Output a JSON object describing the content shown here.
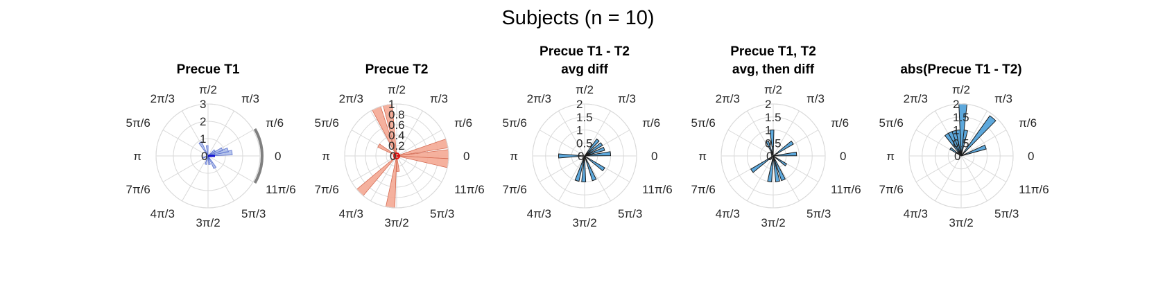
{
  "figure": {
    "title": "Subjects (n = 10)"
  },
  "colors": {
    "blue_fill": "#9fb3e6",
    "blue_edge": "#5a6fd0",
    "blue_line": "#1010d0",
    "salmon_fill": "#f4a893",
    "salmon_edge": "#d46a52",
    "red_line": "#e01010",
    "sky_fill": "#5da8dc",
    "sky_edge": "#1a1a1a",
    "gray_arc": "#808080",
    "grid": "#d9d9d9"
  },
  "chart_data": [
    {
      "type": "polar-histogram",
      "title_lines": [
        "Precue T1"
      ],
      "rmax": 3,
      "rticks": [
        "1",
        "2",
        "3"
      ],
      "rtick_values": [
        1,
        2,
        3
      ],
      "rzero_label": "0",
      "theta_labels": [
        "0",
        "π/6",
        "π/3",
        "π/2",
        "2π/3",
        "5π/6",
        "π",
        "7π/6",
        "4π/3",
        "3π/2",
        "5π/3",
        "11π/6"
      ],
      "bin_width_deg": 11,
      "bins": [
        {
          "theta_deg": 8,
          "r": 1.4
        },
        {
          "theta_deg": 17,
          "r": 1.2
        },
        {
          "theta_deg": 26,
          "r": 0.9
        },
        {
          "theta_deg": 40,
          "r": 0.5
        },
        {
          "theta_deg": 95,
          "r": 0.6
        },
        {
          "theta_deg": 120,
          "r": 0.9
        },
        {
          "theta_deg": 200,
          "r": 0.3
        },
        {
          "theta_deg": 255,
          "r": 0.5
        },
        {
          "theta_deg": 280,
          "r": 0.5
        },
        {
          "theta_deg": 300,
          "r": 0.8
        }
      ],
      "mean_vector": {
        "theta_deg": 0,
        "r": 0.4
      },
      "arc_deg": [
        -30,
        30
      ],
      "style": "blue"
    },
    {
      "type": "polar-histogram",
      "title_lines": [
        "Precue T2"
      ],
      "rmax": 1,
      "rticks": [
        "0.2",
        "0.4",
        "0.6",
        "0.8",
        "1"
      ],
      "rtick_values": [
        0.2,
        0.4,
        0.6,
        0.8,
        1.0
      ],
      "rzero_label": "0",
      "theta_labels": [
        "0",
        "π/6",
        "π/3",
        "π/2",
        "2π/3",
        "5π/6",
        "π",
        "7π/6",
        "4π/3",
        "3π/2",
        "5π/3",
        "11π/6"
      ],
      "bin_width_deg": 10,
      "bins": [
        {
          "theta_deg": 14,
          "r": 1.0
        },
        {
          "theta_deg": 2,
          "r": 1.0
        },
        {
          "theta_deg": -8,
          "r": 1.0
        },
        {
          "theta_deg": 100,
          "r": 1.0
        },
        {
          "theta_deg": 113,
          "r": 1.0
        },
        {
          "theta_deg": 150,
          "r": 0.4
        },
        {
          "theta_deg": 225,
          "r": 1.0
        },
        {
          "theta_deg": 263,
          "r": 1.0
        },
        {
          "theta_deg": 275,
          "r": 0.3
        }
      ],
      "mean_vector": {
        "theta_deg": 0,
        "r": 0.05
      },
      "style": "salmon"
    },
    {
      "type": "polar-histogram",
      "title_lines": [
        "Precue T1 - T2",
        "avg diff"
      ],
      "rmax": 2,
      "rticks": [
        "0.5",
        "1",
        "1.5",
        "2"
      ],
      "rtick_values": [
        0.5,
        1.0,
        1.5,
        2.0
      ],
      "rzero_label": "0",
      "theta_labels": [
        "0",
        "π/6",
        "π/3",
        "π/2",
        "2π/3",
        "5π/6",
        "π",
        "7π/6",
        "4π/3",
        "3π/2",
        "5π/3",
        "11π/6"
      ],
      "bin_width_deg": 9,
      "bins": [
        {
          "theta_deg": 5,
          "r": 1.0
        },
        {
          "theta_deg": 20,
          "r": 0.8
        },
        {
          "theta_deg": 35,
          "r": 0.8
        },
        {
          "theta_deg": 50,
          "r": 0.8
        },
        {
          "theta_deg": 180,
          "r": 1.0
        },
        {
          "theta_deg": 253,
          "r": 1.0
        },
        {
          "theta_deg": 268,
          "r": 1.0
        },
        {
          "theta_deg": 292,
          "r": 1.0
        },
        {
          "theta_deg": 325,
          "r": 0.9
        }
      ],
      "style": "sky"
    },
    {
      "type": "polar-histogram",
      "title_lines": [
        "Precue T1, T2",
        "avg, then diff"
      ],
      "rmax": 2,
      "rticks": [
        "0.5",
        "1",
        "1.5",
        "2"
      ],
      "rtick_values": [
        0.5,
        1.0,
        1.5,
        2.0
      ],
      "rzero_label": "0",
      "theta_labels": [
        "0",
        "π/6",
        "π/3",
        "π/2",
        "2π/3",
        "5π/6",
        "π",
        "7π/6",
        "4π/3",
        "3π/2",
        "5π/3",
        "11π/6"
      ],
      "bin_width_deg": 9,
      "bins": [
        {
          "theta_deg": 5,
          "r": 0.9
        },
        {
          "theta_deg": 35,
          "r": 0.9
        },
        {
          "theta_deg": 93,
          "r": 1.0
        },
        {
          "theta_deg": 112,
          "r": 0.6
        },
        {
          "theta_deg": 215,
          "r": 1.0
        },
        {
          "theta_deg": 262,
          "r": 1.0
        },
        {
          "theta_deg": 280,
          "r": 1.0
        },
        {
          "theta_deg": 293,
          "r": 1.0
        },
        {
          "theta_deg": 325,
          "r": 0.6
        }
      ],
      "style": "sky"
    },
    {
      "type": "polar-histogram",
      "title_lines": [
        "abs(Precue T1 - T2)"
      ],
      "rmax": 2,
      "rticks": [
        "0.5",
        "1",
        "1.5",
        "2"
      ],
      "rtick_values": [
        0.5,
        1.0,
        1.5,
        2.0
      ],
      "rzero_label": "0",
      "theta_labels": [
        "0",
        "π/6",
        "π/3",
        "π/2",
        "2π/3",
        "5π/6",
        "π",
        "7π/6",
        "4π/3",
        "3π/2",
        "5π/3",
        "11π/6"
      ],
      "bin_width_deg": 9,
      "bins": [
        {
          "theta_deg": 20,
          "r": 1.0
        },
        {
          "theta_deg": 50,
          "r": 1.9
        },
        {
          "theta_deg": 80,
          "r": 1.0
        },
        {
          "theta_deg": 88,
          "r": 2.0
        },
        {
          "theta_deg": 97,
          "r": 1.0
        },
        {
          "theta_deg": 106,
          "r": 1.0
        },
        {
          "theta_deg": 115,
          "r": 1.0
        },
        {
          "theta_deg": 124,
          "r": 1.0
        },
        {
          "theta_deg": 145,
          "r": 0.5
        }
      ],
      "style": "sky"
    }
  ]
}
